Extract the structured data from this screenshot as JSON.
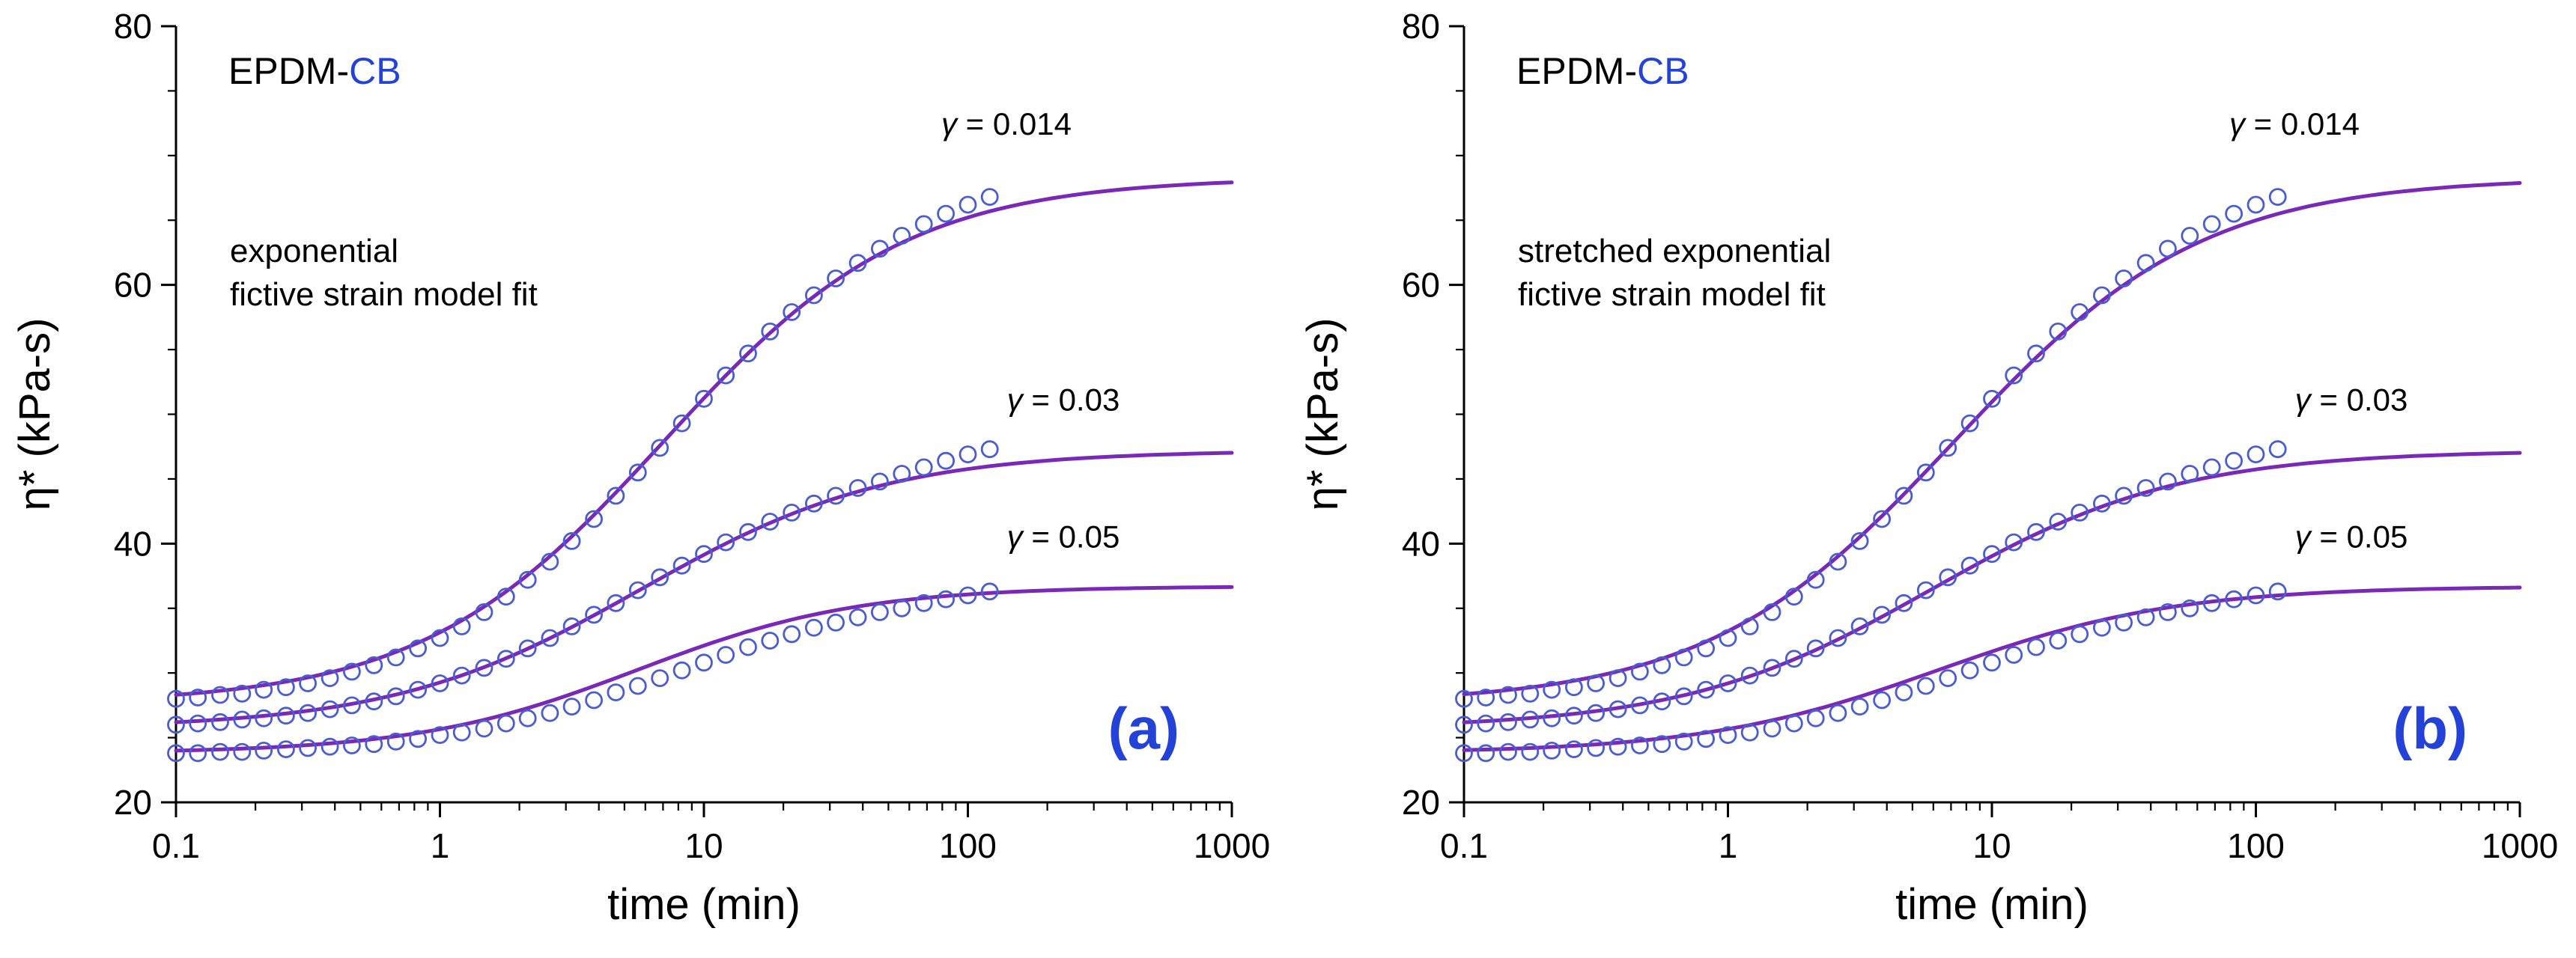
{
  "figure": {
    "background": "#ffffff",
    "colors": {
      "axis": "#000000",
      "text": "#000000",
      "scatter": "#4a5cd4",
      "fit_line": "#7a28b8",
      "accent_blue": "#2442d8"
    }
  },
  "chart_data": [
    {
      "panel": "a",
      "panel_label": "(a)",
      "type": "scatter+line",
      "xscale": "log",
      "xlim": [
        0.1,
        1000
      ],
      "ylim": [
        20,
        80
      ],
      "x_major_ticks": [
        0.1,
        1,
        10,
        100,
        1000
      ],
      "x_tick_labels": [
        "0.1",
        "1",
        "10",
        "100",
        "1000"
      ],
      "y_major_ticks": [
        20,
        40,
        60,
        80
      ],
      "y_minor_step": 5,
      "xlabel": "time (min)",
      "ylabel": "η*  (kPa-s)",
      "grid": false,
      "legend_position": "inline-curve-labels",
      "sample_label": {
        "black": "EPDM-",
        "blue": "CB"
      },
      "model_label_lines": [
        "exponential",
        "fictive strain model fit"
      ],
      "scatter_t": [
        0.1,
        0.121,
        0.147,
        0.178,
        0.215,
        0.261,
        0.316,
        0.383,
        0.464,
        0.562,
        0.681,
        0.825,
        1.0,
        1.21,
        1.47,
        1.78,
        2.15,
        2.61,
        3.16,
        3.83,
        4.64,
        5.62,
        6.81,
        8.25,
        10,
        12.1,
        14.7,
        17.8,
        21.5,
        26.1,
        31.6,
        38.3,
        46.4,
        56.2,
        68.1,
        82.5,
        100,
        121
      ],
      "series": [
        {
          "name": "gamma-0.014",
          "curve_label": "γ = 0.014",
          "label_pos": {
            "t": 140,
            "y": 71.6
          },
          "scatter_eta": [
            28.0,
            28.1,
            28.3,
            28.4,
            28.7,
            28.9,
            29.2,
            29.6,
            30.1,
            30.6,
            31.2,
            31.9,
            32.7,
            33.6,
            34.7,
            35.9,
            37.2,
            38.6,
            40.2,
            41.9,
            43.7,
            45.5,
            47.4,
            49.3,
            51.2,
            53.0,
            54.7,
            56.4,
            57.9,
            59.2,
            60.5,
            61.7,
            62.8,
            63.8,
            64.7,
            65.5,
            66.2,
            66.8
          ],
          "fit": {
            "eta0": 27.6,
            "eta_inf": 68.3,
            "log_t_mid": 0.85,
            "log_width": 0.46
          }
        },
        {
          "name": "gamma-0.03",
          "curve_label": "γ = 0.03",
          "label_pos": {
            "t": 230,
            "y": 50.3
          },
          "scatter_eta": [
            26.0,
            26.1,
            26.2,
            26.4,
            26.5,
            26.7,
            26.9,
            27.2,
            27.5,
            27.8,
            28.2,
            28.7,
            29.2,
            29.8,
            30.4,
            31.1,
            31.9,
            32.7,
            33.6,
            34.5,
            35.4,
            36.4,
            37.4,
            38.3,
            39.2,
            40.1,
            40.9,
            41.7,
            42.4,
            43.1,
            43.7,
            44.3,
            44.8,
            45.4,
            45.9,
            46.4,
            46.9,
            47.3
          ],
          "fit": {
            "eta0": 25.7,
            "eta_inf": 47.2,
            "log_t_mid": 0.76,
            "log_width": 0.47
          }
        },
        {
          "name": "gamma-0.05",
          "curve_label": "γ = 0.05",
          "label_pos": {
            "t": 230,
            "y": 39.7
          },
          "scatter_eta": [
            23.8,
            23.8,
            23.9,
            23.9,
            24.0,
            24.1,
            24.2,
            24.3,
            24.4,
            24.5,
            24.7,
            24.9,
            25.2,
            25.4,
            25.7,
            26.1,
            26.5,
            26.9,
            27.4,
            27.9,
            28.5,
            29.0,
            29.6,
            30.2,
            30.8,
            31.4,
            32.0,
            32.5,
            33.0,
            33.5,
            33.9,
            34.3,
            34.7,
            35.0,
            35.4,
            35.7,
            36.0,
            36.3
          ],
          "fit": {
            "eta0": 23.8,
            "eta_inf": 36.7,
            "log_t_mid": 0.75,
            "log_width": 0.42
          }
        }
      ]
    },
    {
      "panel": "b",
      "panel_label": "(b)",
      "type": "scatter+line",
      "xscale": "log",
      "xlim": [
        0.1,
        1000
      ],
      "ylim": [
        20,
        80
      ],
      "x_major_ticks": [
        0.1,
        1,
        10,
        100,
        1000
      ],
      "x_tick_labels": [
        "0.1",
        "1",
        "10",
        "100",
        "1000"
      ],
      "y_major_ticks": [
        20,
        40,
        60,
        80
      ],
      "y_minor_step": 5,
      "xlabel": "time (min)",
      "ylabel": "η*  (kPa-s)",
      "grid": false,
      "legend_position": "inline-curve-labels",
      "sample_label": {
        "black": "EPDM-",
        "blue": "CB"
      },
      "model_label_lines": [
        "stretched exponential",
        "fictive strain model fit"
      ],
      "scatter_t": [
        0.1,
        0.121,
        0.147,
        0.178,
        0.215,
        0.261,
        0.316,
        0.383,
        0.464,
        0.562,
        0.681,
        0.825,
        1.0,
        1.21,
        1.47,
        1.78,
        2.15,
        2.61,
        3.16,
        3.83,
        4.64,
        5.62,
        6.81,
        8.25,
        10,
        12.1,
        14.7,
        17.8,
        21.5,
        26.1,
        31.6,
        38.3,
        46.4,
        56.2,
        68.1,
        82.5,
        100,
        121
      ],
      "series": [
        {
          "name": "gamma-0.014",
          "curve_label": "γ = 0.014",
          "label_pos": {
            "t": 140,
            "y": 71.6
          },
          "scatter_eta": [
            28.0,
            28.1,
            28.3,
            28.4,
            28.7,
            28.9,
            29.2,
            29.6,
            30.1,
            30.6,
            31.2,
            31.9,
            32.7,
            33.6,
            34.7,
            35.9,
            37.2,
            38.6,
            40.2,
            41.9,
            43.7,
            45.5,
            47.4,
            49.3,
            51.2,
            53.0,
            54.7,
            56.4,
            57.9,
            59.2,
            60.5,
            61.7,
            62.8,
            63.8,
            64.7,
            65.5,
            66.2,
            66.8
          ],
          "fit": {
            "eta0": 27.6,
            "eta_inf": 68.3,
            "log_t_mid": 0.86,
            "log_width": 0.47
          }
        },
        {
          "name": "gamma-0.03",
          "curve_label": "γ = 0.03",
          "label_pos": {
            "t": 230,
            "y": 50.3
          },
          "scatter_eta": [
            26.0,
            26.1,
            26.2,
            26.4,
            26.5,
            26.7,
            26.9,
            27.2,
            27.5,
            27.8,
            28.2,
            28.7,
            29.2,
            29.8,
            30.4,
            31.1,
            31.9,
            32.7,
            33.6,
            34.5,
            35.4,
            36.4,
            37.4,
            38.3,
            39.2,
            40.1,
            40.9,
            41.7,
            42.4,
            43.1,
            43.7,
            44.3,
            44.8,
            45.4,
            45.9,
            46.4,
            46.9,
            47.3
          ],
          "fit": {
            "eta0": 25.7,
            "eta_inf": 47.2,
            "log_t_mid": 0.77,
            "log_width": 0.47
          }
        },
        {
          "name": "gamma-0.05",
          "curve_label": "γ = 0.05",
          "label_pos": {
            "t": 230,
            "y": 39.7
          },
          "scatter_eta": [
            23.8,
            23.8,
            23.9,
            23.9,
            24.0,
            24.1,
            24.2,
            24.3,
            24.4,
            24.5,
            24.7,
            24.9,
            25.2,
            25.4,
            25.7,
            26.1,
            26.5,
            26.9,
            27.4,
            27.9,
            28.5,
            29.0,
            29.6,
            30.2,
            30.8,
            31.4,
            32.0,
            32.5,
            33.0,
            33.5,
            33.9,
            34.3,
            34.7,
            35.0,
            35.4,
            35.7,
            36.0,
            36.3
          ],
          "fit": {
            "eta0": 23.8,
            "eta_inf": 36.7,
            "log_t_mid": 0.8,
            "log_width": 0.45
          }
        }
      ]
    }
  ]
}
